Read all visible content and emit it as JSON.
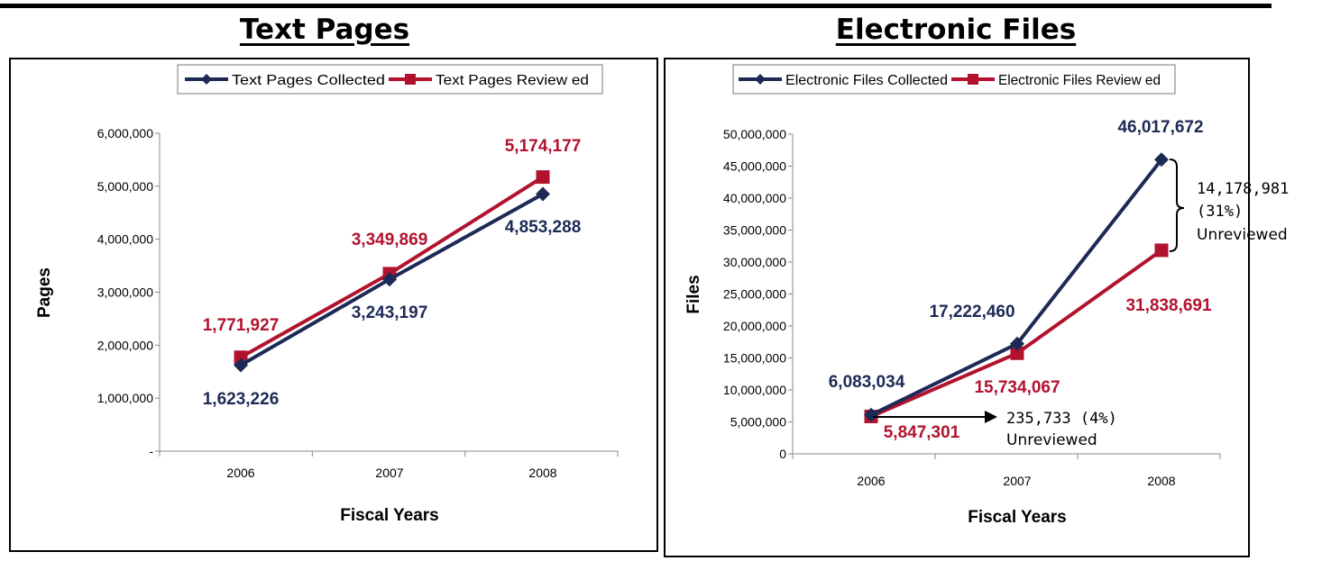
{
  "headings": {
    "left": "Text Pages",
    "right": "Electronic Files"
  },
  "chart_data": [
    {
      "type": "line",
      "title": "Text Pages",
      "xlabel": "Fiscal Years",
      "ylabel": "Pages",
      "categories": [
        "2006",
        "2007",
        "2008"
      ],
      "ylim": [
        0,
        6000000
      ],
      "yticks": [
        0,
        1000000,
        2000000,
        3000000,
        4000000,
        5000000,
        6000000
      ],
      "ytick_labels": [
        "-",
        "1,000,000",
        "2,000,000",
        "3,000,000",
        "4,000,000",
        "5,000,000",
        "6,000,000"
      ],
      "legend_position": "top",
      "series": [
        {
          "name": "Text Pages Collected",
          "color": "#1c2a55",
          "marker": "diamond",
          "values": [
            1623226,
            3243197,
            4853288
          ],
          "labels": [
            "1,623,226",
            "3,243,197",
            "4,853,288"
          ]
        },
        {
          "name": "Text Pages Review ed",
          "color": "#b3122e",
          "marker": "square",
          "values": [
            1771927,
            3349869,
            5174177
          ],
          "labels": [
            "1,771,927",
            "3,349,869",
            "5,174,177"
          ]
        }
      ]
    },
    {
      "type": "line",
      "title": "Electronic Files",
      "xlabel": "Fiscal Years",
      "ylabel": "Files",
      "categories": [
        "2006",
        "2007",
        "2008"
      ],
      "ylim": [
        0,
        50000000
      ],
      "yticks": [
        0,
        5000000,
        10000000,
        15000000,
        20000000,
        25000000,
        30000000,
        35000000,
        40000000,
        45000000,
        50000000
      ],
      "ytick_labels": [
        "0",
        "5,000,000",
        "10,000,000",
        "15,000,000",
        "20,000,000",
        "25,000,000",
        "30,000,000",
        "35,000,000",
        "40,000,000",
        "45,000,000",
        "50,000,000"
      ],
      "legend_position": "top",
      "series": [
        {
          "name": "Electronic Files Collected",
          "color": "#1c2a55",
          "marker": "diamond",
          "values": [
            6083034,
            17222460,
            46017672
          ],
          "labels": [
            "6,083,034",
            "17,222,460",
            "46,017,672"
          ]
        },
        {
          "name": "Electronic Files Review ed",
          "color": "#b3122e",
          "marker": "square",
          "values": [
            5847301,
            15734067,
            31838691
          ],
          "labels": [
            "5,847,301",
            "15,734,067",
            "31,838,691"
          ]
        }
      ],
      "annotations": {
        "gap_2008": [
          "14,178,981",
          "(31%)",
          "Unreviewed"
        ],
        "gap_2006": [
          "235,733 (4%)",
          "Unreviewed"
        ]
      }
    }
  ]
}
